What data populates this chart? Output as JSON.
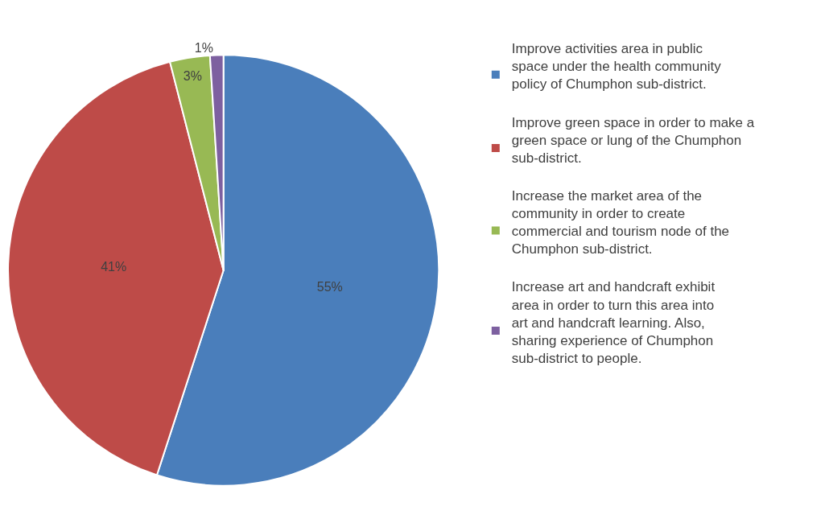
{
  "chart_data": {
    "type": "pie",
    "categories": [
      "Improve activities area in public space under the health community policy of Chumphon sub-district.",
      "Improve green space in order to make a green space or lung of the Chumphon sub-district.",
      "Increase the market area of the community in order to create commercial and tourism node of the Chumphon sub-district.",
      "Increase art and handcraft exhibit area in order to turn this area into art and handcraft learning. Also, sharing experience of Chumphon sub-district to people."
    ],
    "values": [
      55,
      41,
      3,
      1
    ],
    "value_labels": [
      "55%",
      "41%",
      "3%",
      "1%"
    ],
    "colors": [
      "#4a7ebb",
      "#be4b48",
      "#98b954",
      "#7d60a0"
    ],
    "legend": "right"
  }
}
